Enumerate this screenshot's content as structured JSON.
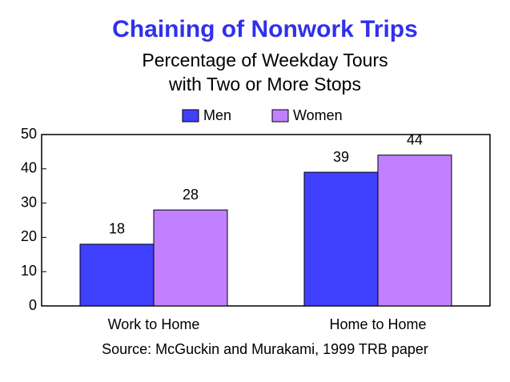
{
  "chart_data": {
    "type": "bar",
    "title": "Chaining of Nonwork Trips",
    "subtitle": [
      "Percentage of Weekday Tours",
      "with Two or More Stops"
    ],
    "categories": [
      "Work to Home",
      "Home to Home"
    ],
    "series": [
      {
        "name": "Men",
        "color": "#4040ff",
        "values": [
          18,
          39
        ]
      },
      {
        "name": "Women",
        "color": "#c080ff",
        "values": [
          28,
          44
        ]
      }
    ],
    "ylim": [
      0,
      50
    ],
    "yticks": [
      0,
      10,
      20,
      30,
      40,
      50
    ],
    "legend": "top",
    "source": "Source: McGuckin and Murakami, 1999 TRB paper"
  }
}
